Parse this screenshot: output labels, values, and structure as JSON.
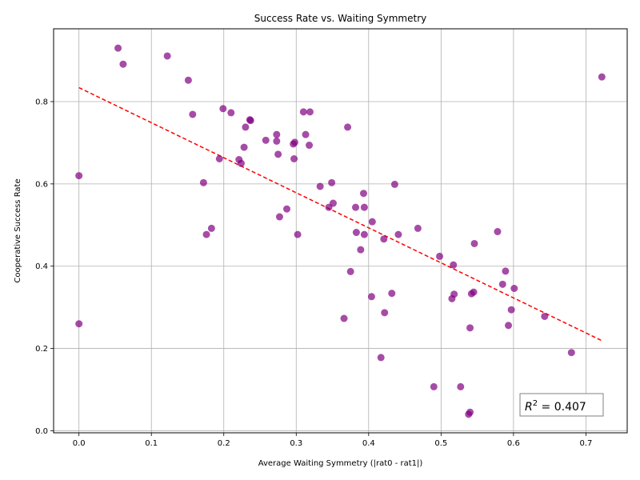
{
  "chart_data": {
    "type": "scatter",
    "title": "Success Rate vs. Waiting Symmetry",
    "xlabel": "Average Waiting Symmetry (|rat0 - rat1|)",
    "ylabel": "Cooperative Success Rate",
    "xlim": [
      -0.035,
      0.757
    ],
    "ylim": [
      -0.005,
      0.977
    ],
    "xticks": [
      0.0,
      0.1,
      0.2,
      0.3,
      0.4,
      0.5,
      0.6,
      0.7
    ],
    "xtick_labels": [
      "0.0",
      "0.1",
      "0.2",
      "0.3",
      "0.4",
      "0.5",
      "0.6",
      "0.7"
    ],
    "yticks": [
      0.0,
      0.2,
      0.4,
      0.6,
      0.8
    ],
    "ytick_labels": [
      "0.0",
      "0.2",
      "0.4",
      "0.6",
      "0.8"
    ],
    "grid": true,
    "point_color": "#800080",
    "trend_color": "#ff0000",
    "trendline": {
      "x": [
        0.0,
        0.722
      ],
      "y": [
        0.834,
        0.219
      ]
    },
    "annotation": {
      "prefix": "R",
      "superscript": "2",
      "text": " = 0.407",
      "placement": "bottom-right"
    },
    "points": [
      {
        "x": 0.054,
        "y": 0.93
      },
      {
        "x": 0.061,
        "y": 0.891
      },
      {
        "x": 0.122,
        "y": 0.911
      },
      {
        "x": 0.151,
        "y": 0.852
      },
      {
        "x": 0.157,
        "y": 0.769
      },
      {
        "x": 0.0,
        "y": 0.62
      },
      {
        "x": 0.0,
        "y": 0.26
      },
      {
        "x": 0.172,
        "y": 0.603
      },
      {
        "x": 0.176,
        "y": 0.477
      },
      {
        "x": 0.183,
        "y": 0.492
      },
      {
        "x": 0.194,
        "y": 0.661
      },
      {
        "x": 0.199,
        "y": 0.783
      },
      {
        "x": 0.21,
        "y": 0.773
      },
      {
        "x": 0.221,
        "y": 0.659
      },
      {
        "x": 0.224,
        "y": 0.65
      },
      {
        "x": 0.228,
        "y": 0.689
      },
      {
        "x": 0.23,
        "y": 0.738
      },
      {
        "x": 0.236,
        "y": 0.756
      },
      {
        "x": 0.237,
        "y": 0.754
      },
      {
        "x": 0.258,
        "y": 0.706
      },
      {
        "x": 0.273,
        "y": 0.72
      },
      {
        "x": 0.273,
        "y": 0.704
      },
      {
        "x": 0.275,
        "y": 0.672
      },
      {
        "x": 0.277,
        "y": 0.52
      },
      {
        "x": 0.287,
        "y": 0.539
      },
      {
        "x": 0.296,
        "y": 0.697
      },
      {
        "x": 0.298,
        "y": 0.701
      },
      {
        "x": 0.297,
        "y": 0.661
      },
      {
        "x": 0.302,
        "y": 0.477
      },
      {
        "x": 0.31,
        "y": 0.775
      },
      {
        "x": 0.313,
        "y": 0.72
      },
      {
        "x": 0.318,
        "y": 0.694
      },
      {
        "x": 0.319,
        "y": 0.775
      },
      {
        "x": 0.333,
        "y": 0.594
      },
      {
        "x": 0.345,
        "y": 0.543
      },
      {
        "x": 0.349,
        "y": 0.603
      },
      {
        "x": 0.351,
        "y": 0.553
      },
      {
        "x": 0.366,
        "y": 0.273
      },
      {
        "x": 0.371,
        "y": 0.738
      },
      {
        "x": 0.375,
        "y": 0.387
      },
      {
        "x": 0.382,
        "y": 0.543
      },
      {
        "x": 0.383,
        "y": 0.482
      },
      {
        "x": 0.389,
        "y": 0.44
      },
      {
        "x": 0.393,
        "y": 0.577
      },
      {
        "x": 0.394,
        "y": 0.543
      },
      {
        "x": 0.394,
        "y": 0.477
      },
      {
        "x": 0.404,
        "y": 0.326
      },
      {
        "x": 0.405,
        "y": 0.508
      },
      {
        "x": 0.417,
        "y": 0.178
      },
      {
        "x": 0.421,
        "y": 0.466
      },
      {
        "x": 0.422,
        "y": 0.287
      },
      {
        "x": 0.432,
        "y": 0.334
      },
      {
        "x": 0.436,
        "y": 0.599
      },
      {
        "x": 0.441,
        "y": 0.477
      },
      {
        "x": 0.468,
        "y": 0.492
      },
      {
        "x": 0.49,
        "y": 0.107
      },
      {
        "x": 0.498,
        "y": 0.424
      },
      {
        "x": 0.515,
        "y": 0.321
      },
      {
        "x": 0.517,
        "y": 0.403
      },
      {
        "x": 0.518,
        "y": 0.332
      },
      {
        "x": 0.527,
        "y": 0.107
      },
      {
        "x": 0.538,
        "y": 0.04
      },
      {
        "x": 0.54,
        "y": 0.045
      },
      {
        "x": 0.54,
        "y": 0.25
      },
      {
        "x": 0.542,
        "y": 0.333
      },
      {
        "x": 0.545,
        "y": 0.337
      },
      {
        "x": 0.546,
        "y": 0.455
      },
      {
        "x": 0.578,
        "y": 0.484
      },
      {
        "x": 0.585,
        "y": 0.356
      },
      {
        "x": 0.589,
        "y": 0.388
      },
      {
        "x": 0.593,
        "y": 0.256
      },
      {
        "x": 0.597,
        "y": 0.294
      },
      {
        "x": 0.601,
        "y": 0.346
      },
      {
        "x": 0.643,
        "y": 0.278
      },
      {
        "x": 0.68,
        "y": 0.19
      },
      {
        "x": 0.722,
        "y": 0.86
      }
    ]
  }
}
